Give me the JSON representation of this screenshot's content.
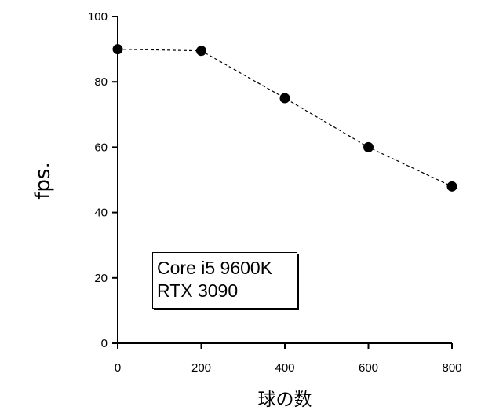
{
  "chart_data": {
    "type": "line",
    "title": "",
    "xlabel": "球の数",
    "ylabel": "fps.",
    "xlim": [
      0,
      800
    ],
    "ylim": [
      0,
      100
    ],
    "xticks": [
      0,
      200,
      400,
      600,
      800
    ],
    "yticks": [
      0,
      20,
      40,
      60,
      80,
      100
    ],
    "grid": false,
    "series": [
      {
        "x": [
          0,
          200,
          400,
          600,
          800
        ],
        "y": [
          90,
          89.5,
          75,
          60,
          48
        ],
        "line_style": "dashed",
        "marker": "filled-circle",
        "color": "#000000"
      }
    ],
    "annotation": {
      "lines": [
        "Core i5 9600K",
        "RTX 3090"
      ],
      "placement": "lower-left"
    }
  }
}
